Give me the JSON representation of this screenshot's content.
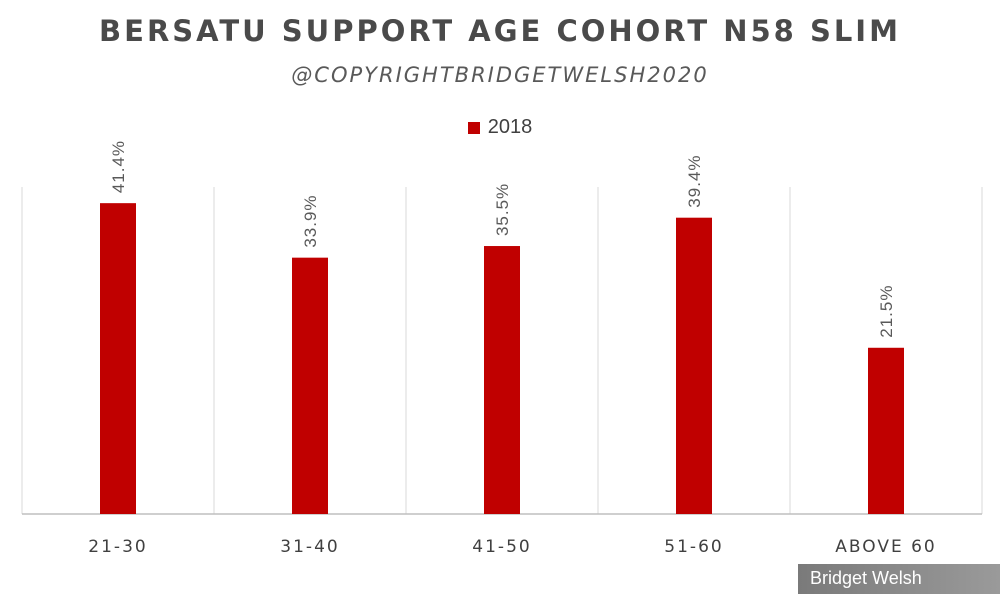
{
  "chart_data": {
    "type": "bar",
    "title": "BERSATU SUPPORT AGE COHORT N58 SLIM",
    "subtitle": "@COPYRIGHTBRIDGETWELSH2020",
    "categories": [
      "21-30",
      "31-40",
      "41-50",
      "51-60",
      "ABOVE 60"
    ],
    "series": [
      {
        "name": "2018",
        "color": "#c00000",
        "values": [
          41.4,
          33.9,
          35.5,
          39.4,
          21.5
        ],
        "labels": [
          "41.4%",
          "33.9%",
          "35.5%",
          "39.4%",
          "21.5%"
        ]
      }
    ],
    "ylim": [
      0,
      45
    ],
    "gridlines": "vertical category separators",
    "legend": "top-center"
  },
  "watermark": "Bridget Welsh"
}
